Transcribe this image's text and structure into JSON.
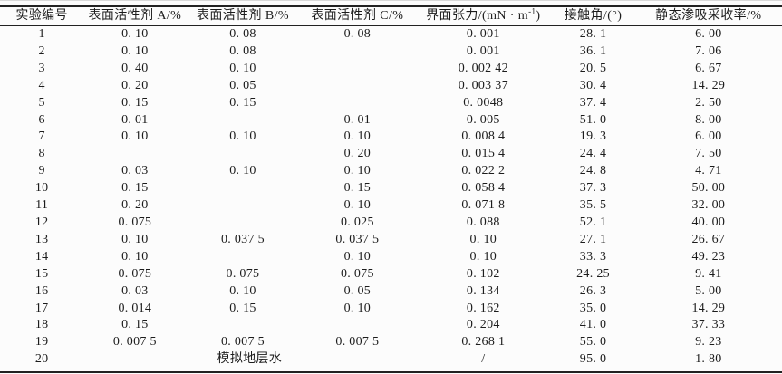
{
  "page": {
    "background": "#fcfcfc",
    "text_color": "#1c1c1c",
    "rule_color": "#222222"
  },
  "table": {
    "columns": [
      {
        "id": "experiment-no",
        "label": "实验编号"
      },
      {
        "id": "surfactant-a",
        "label": "表面活性剂 A/%"
      },
      {
        "id": "surfactant-b",
        "label": "表面活性剂 B/%"
      },
      {
        "id": "surfactant-c",
        "label": "表面活性剂 C/%"
      },
      {
        "id": "interfacial-tension",
        "label": "界面张力/(mN · m",
        "sup": "-1",
        "suffix": ")"
      },
      {
        "id": "contact-angle",
        "label": "接触角/(°)"
      },
      {
        "id": "static-recovery",
        "label": "静态渗吸采收率/%"
      }
    ],
    "rows": [
      [
        "1",
        "0. 10",
        "0. 08",
        "0. 08",
        "0. 001",
        "28. 1",
        "6. 00"
      ],
      [
        "2",
        "0. 10",
        "0. 08",
        "",
        "0. 001",
        "36. 1",
        "7. 06"
      ],
      [
        "3",
        "0. 40",
        "0. 10",
        "",
        "0. 002 42",
        "20. 5",
        "6. 67"
      ],
      [
        "4",
        "0. 20",
        "0. 05",
        "",
        "0. 003 37",
        "30. 4",
        "14. 29"
      ],
      [
        "5",
        "0. 15",
        "0. 15",
        "",
        "0. 0048",
        "37. 4",
        "2. 50"
      ],
      [
        "6",
        "0. 01",
        "",
        "0. 01",
        "0. 005",
        "51. 0",
        "8. 00"
      ],
      [
        "7",
        "0. 10",
        "0. 10",
        "0. 10",
        "0. 008 4",
        "19. 3",
        "6. 00"
      ],
      [
        "8",
        "",
        "",
        "0. 20",
        "0. 015 4",
        "24. 4",
        "7. 50"
      ],
      [
        "9",
        "0. 03",
        "0. 10",
        "0. 10",
        "0. 022 2",
        "24. 8",
        "4. 71"
      ],
      [
        "10",
        "0. 15",
        "",
        "0. 15",
        "0. 058 4",
        "37. 3",
        "50. 00"
      ],
      [
        "11",
        "0. 20",
        "",
        "0. 10",
        "0. 071 8",
        "35. 5",
        "32. 00"
      ],
      [
        "12",
        "0. 075",
        "",
        "0. 025",
        "0. 088",
        "52. 1",
        "40. 00"
      ],
      [
        "13",
        "0. 10",
        "0. 037 5",
        "0. 037 5",
        "0. 10",
        "27. 1",
        "26. 67"
      ],
      [
        "14",
        "0. 10",
        "",
        "0. 10",
        "0. 10",
        "33. 3",
        "49. 23"
      ],
      [
        "15",
        "0. 075",
        "0. 075",
        "0. 075",
        "0. 102",
        "24. 25",
        "9. 41"
      ],
      [
        "16",
        "0. 03",
        "0. 10",
        "0. 05",
        "0. 134",
        "26. 3",
        "5. 00"
      ],
      [
        "17",
        "0. 014",
        "0. 15",
        "0. 10",
        "0. 162",
        "35. 0",
        "14. 29"
      ],
      [
        "18",
        "0. 15",
        "",
        "",
        "0. 204",
        "41. 0",
        "37. 33"
      ],
      [
        "19",
        "0. 007 5",
        "0. 007 5",
        "0. 007 5",
        "0. 268 1",
        "55. 0",
        "9. 23"
      ],
      [
        "20",
        {
          "text": "模拟地层水",
          "span": 3
        },
        "/",
        "95. 0",
        "1. 80"
      ]
    ]
  }
}
